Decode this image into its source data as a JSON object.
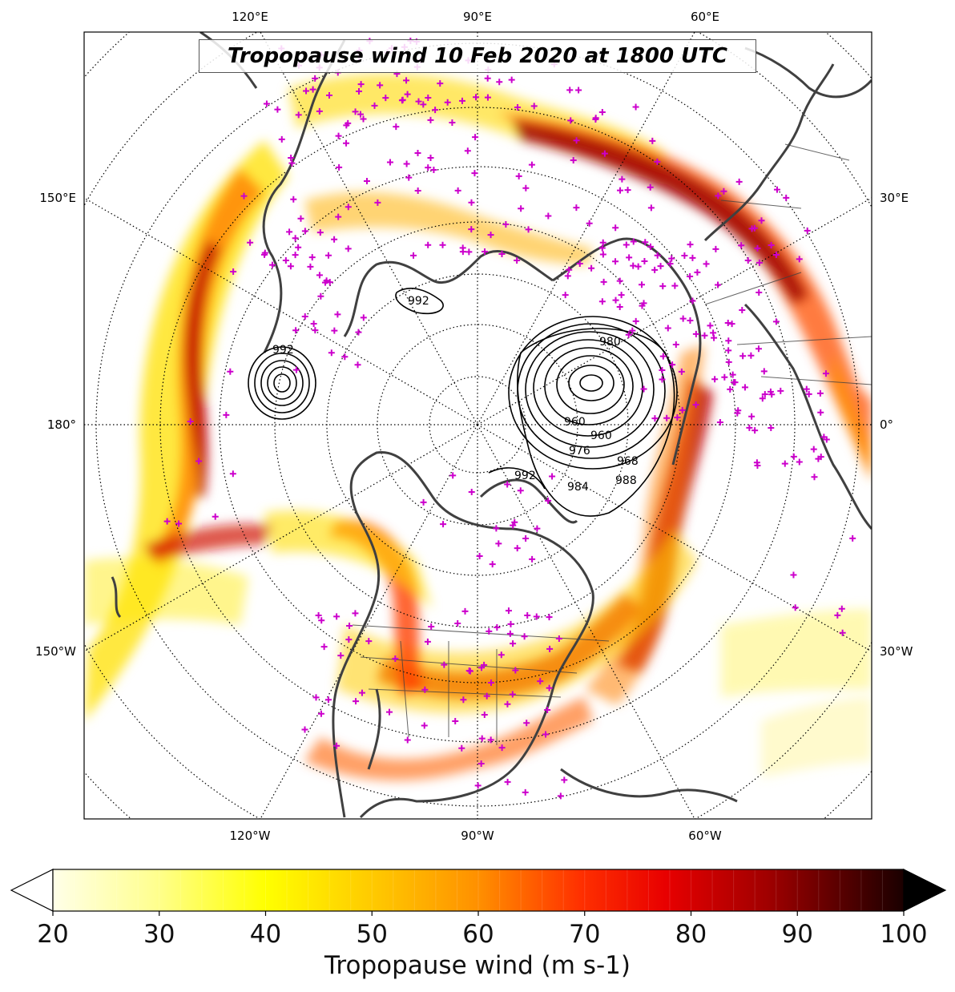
{
  "title": "Tropopause wind 10 Feb 2020 at 1800 UTC",
  "map": {
    "projection": "north-polar-stereographic",
    "field": "Tropopause wind (m s-1)",
    "contour_field": "mean sea level pressure (hPa)",
    "grid_lines": "dotted",
    "marker_color": "#cc00cc",
    "coastline_color": "#404040"
  },
  "labels": {
    "top": [
      "120°E",
      "90°E",
      "60°E"
    ],
    "bottom": [
      "120°W",
      "90°W",
      "60°W"
    ],
    "left": [
      "150°E",
      "180°",
      "150°W"
    ],
    "right": [
      "30°E",
      "0°",
      "30°W"
    ]
  },
  "contour_labels": [
    "992",
    "992",
    "992",
    "960",
    "960",
    "976",
    "984",
    "980",
    "968",
    "988"
  ],
  "colorbar": {
    "label": "Tropopause wind (m s-1)",
    "ticks": [
      "20",
      "30",
      "40",
      "50",
      "60",
      "70",
      "80",
      "90",
      "100"
    ],
    "min": 20,
    "max": 100,
    "extend": "both",
    "colormap": "hot_r",
    "colors": [
      "#ffffe8",
      "#ffff80",
      "#ffff00",
      "#ffd000",
      "#ff9000",
      "#ff5000",
      "#ff0000",
      "#d00000",
      "#900000",
      "#500000",
      "#1a0000"
    ]
  },
  "chart_data": {
    "type": "heatmap",
    "title": "Tropopause wind 10 Feb 2020 at 1800 UTC",
    "colorbar_label": "Tropopause wind (m s-1)",
    "value_range": [
      20,
      100
    ],
    "colorbar_ticks": [
      20,
      30,
      40,
      50,
      60,
      70,
      80,
      90,
      100
    ],
    "lon_labels": [
      "120°E",
      "90°E",
      "60°E",
      "30°E",
      "0°",
      "30°W",
      "60°W",
      "90°W",
      "120°W",
      "150°W",
      "180°",
      "150°E"
    ],
    "contour_labels_hpa": [
      992,
      992,
      992,
      960,
      960,
      976,
      984,
      980,
      968,
      988
    ]
  }
}
